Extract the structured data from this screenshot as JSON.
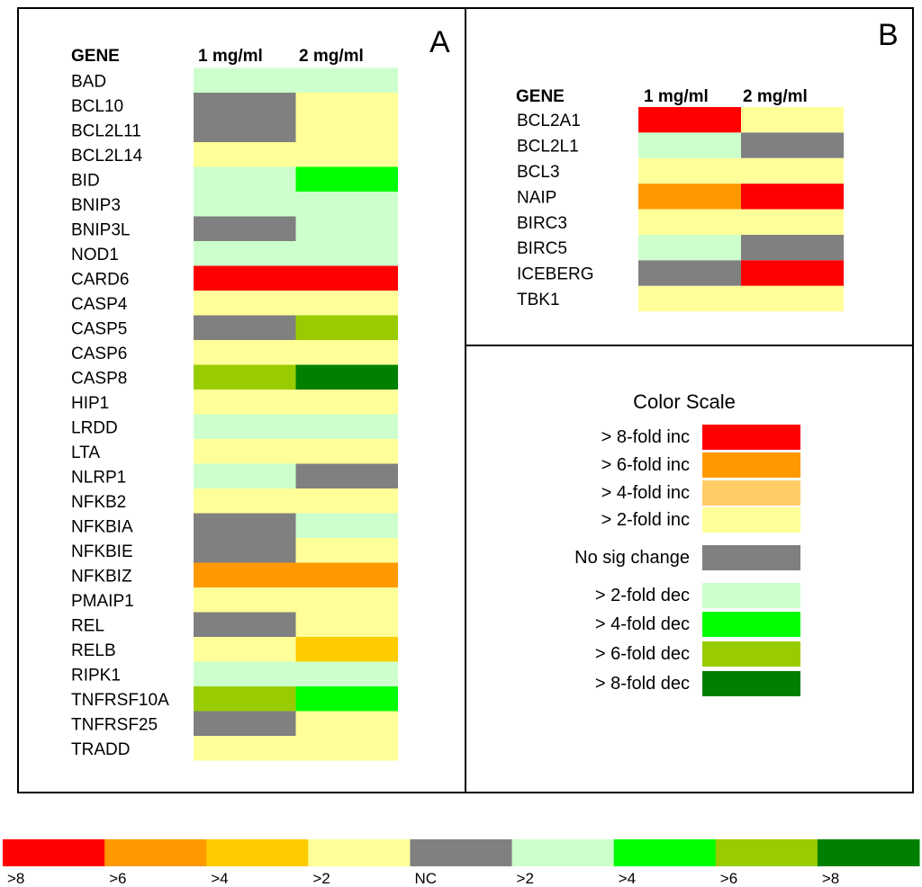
{
  "panel_a": {
    "letter": "A",
    "header": {
      "gene": "GENE",
      "col1": "1 mg/ml",
      "col2": "2 mg/ml"
    }
  },
  "panel_b": {
    "letter": "B",
    "header": {
      "gene": "GENE",
      "col1": "1 mg/ml",
      "col2": "2 mg/ml"
    }
  },
  "colors": {
    "inc8": "#ff0000",
    "inc6": "#ff9900",
    "inc4": "#ffcc00",
    "inc2": "#ffff99",
    "nc": "#808080",
    "dec2": "#ccffcc",
    "dec4": "#00ff00",
    "dec6": "#99cc00",
    "dec8": "#008000",
    "legend_inc4": "#ffcc66"
  },
  "color_scale": {
    "title": "Color Scale",
    "entries": [
      {
        "label": "> 8-fold inc",
        "level": "inc8"
      },
      {
        "label": "> 6-fold inc",
        "level": "inc6"
      },
      {
        "label": "> 4-fold inc",
        "level": "legend_inc4"
      },
      {
        "label": "> 2-fold inc",
        "level": "inc2"
      },
      {
        "label": "No sig change",
        "level": "nc"
      },
      {
        "label": "> 2-fold dec",
        "level": "dec2"
      },
      {
        "label": "> 4-fold dec",
        "level": "dec4"
      },
      {
        "label": "> 6-fold dec",
        "level": "dec6"
      },
      {
        "label": "> 8-fold dec",
        "level": "dec8"
      }
    ]
  },
  "bottom_bar": [
    {
      "label": ">8",
      "level": "inc8"
    },
    {
      "label": ">6",
      "level": "inc6"
    },
    {
      "label": ">4",
      "level": "inc4"
    },
    {
      "label": ">2",
      "level": "inc2"
    },
    {
      "label": "NC",
      "level": "nc"
    },
    {
      "label": ">2",
      "level": "dec2"
    },
    {
      "label": ">4",
      "level": "dec4"
    },
    {
      "label": ">6",
      "level": "dec6"
    },
    {
      "label": ">8",
      "level": "dec8"
    }
  ],
  "chart_data": [
    {
      "type": "heatmap",
      "title": "A",
      "columns": [
        "1 mg/ml",
        "2 mg/ml"
      ],
      "rows": [
        {
          "gene": "BAD",
          "values": [
            "dec2",
            "dec2"
          ]
        },
        {
          "gene": "BCL10",
          "values": [
            "nc",
            "inc2"
          ]
        },
        {
          "gene": "BCL2L11",
          "values": [
            "nc",
            "inc2"
          ]
        },
        {
          "gene": "BCL2L14",
          "values": [
            "inc2",
            "inc2"
          ]
        },
        {
          "gene": "BID",
          "values": [
            "dec2",
            "dec4"
          ]
        },
        {
          "gene": "BNIP3",
          "values": [
            "dec2",
            "dec2"
          ]
        },
        {
          "gene": "BNIP3L",
          "values": [
            "nc",
            "dec2"
          ]
        },
        {
          "gene": "NOD1",
          "values": [
            "dec2",
            "dec2"
          ]
        },
        {
          "gene": "CARD6",
          "values": [
            "inc8",
            "inc8"
          ]
        },
        {
          "gene": "CASP4",
          "values": [
            "inc2",
            "inc2"
          ]
        },
        {
          "gene": "CASP5",
          "values": [
            "nc",
            "dec6"
          ]
        },
        {
          "gene": "CASP6",
          "values": [
            "inc2",
            "inc2"
          ]
        },
        {
          "gene": "CASP8",
          "values": [
            "dec6",
            "dec8"
          ]
        },
        {
          "gene": "HIP1",
          "values": [
            "inc2",
            "inc2"
          ]
        },
        {
          "gene": "LRDD",
          "values": [
            "dec2",
            "dec2"
          ]
        },
        {
          "gene": "LTA",
          "values": [
            "inc2",
            "inc2"
          ]
        },
        {
          "gene": "NLRP1",
          "values": [
            "dec2",
            "nc"
          ]
        },
        {
          "gene": "NFKB2",
          "values": [
            "inc2",
            "inc2"
          ]
        },
        {
          "gene": "NFKBIA",
          "values": [
            "nc",
            "dec2"
          ]
        },
        {
          "gene": "NFKBIE",
          "values": [
            "nc",
            "inc2"
          ]
        },
        {
          "gene": "NFKBIZ",
          "values": [
            "inc6",
            "inc6"
          ]
        },
        {
          "gene": "PMAIP1",
          "values": [
            "inc2",
            "inc2"
          ]
        },
        {
          "gene": "REL",
          "values": [
            "nc",
            "inc2"
          ]
        },
        {
          "gene": "RELB",
          "values": [
            "inc2",
            "inc4"
          ]
        },
        {
          "gene": "RIPK1",
          "values": [
            "dec2",
            "dec2"
          ]
        },
        {
          "gene": "TNFRSF10A",
          "values": [
            "dec6",
            "dec4"
          ]
        },
        {
          "gene": "TNFRSF25",
          "values": [
            "nc",
            "inc2"
          ]
        },
        {
          "gene": "TRADD",
          "values": [
            "inc2",
            "inc2"
          ]
        }
      ]
    },
    {
      "type": "heatmap",
      "title": "B",
      "columns": [
        "1 mg/ml",
        "2 mg/ml"
      ],
      "rows": [
        {
          "gene": "BCL2A1",
          "values": [
            "inc8",
            "inc2"
          ]
        },
        {
          "gene": "BCL2L1",
          "values": [
            "dec2",
            "nc"
          ]
        },
        {
          "gene": "BCL3",
          "values": [
            "inc2",
            "inc2"
          ]
        },
        {
          "gene": "NAIP",
          "values": [
            "inc6",
            "inc8"
          ]
        },
        {
          "gene": "BIRC3",
          "values": [
            "inc2",
            "inc2"
          ]
        },
        {
          "gene": "BIRC5",
          "values": [
            "dec2",
            "nc"
          ]
        },
        {
          "gene": "ICEBERG",
          "values": [
            "nc",
            "inc8"
          ]
        },
        {
          "gene": "TBK1",
          "values": [
            "inc2",
            "inc2"
          ]
        }
      ]
    }
  ]
}
